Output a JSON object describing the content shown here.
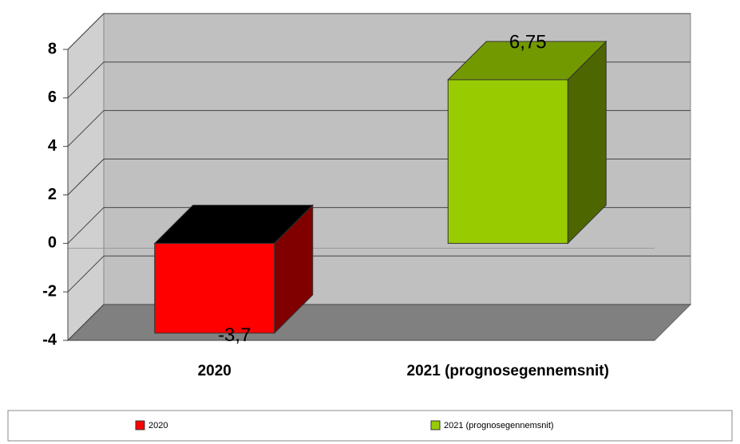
{
  "chart_data": {
    "type": "bar",
    "categories": [
      "2020",
      "2021 (prognosegennemsnit)"
    ],
    "values": [
      -3.7,
      6.75
    ],
    "value_labels": [
      "-3,7",
      "6,75"
    ],
    "colors": [
      "#ff0000",
      "#99cc00"
    ],
    "ylim": [
      -4,
      8
    ],
    "yticks": [
      -4,
      -2,
      0,
      2,
      4,
      6,
      8
    ],
    "grid": true,
    "legend": "bottom"
  }
}
